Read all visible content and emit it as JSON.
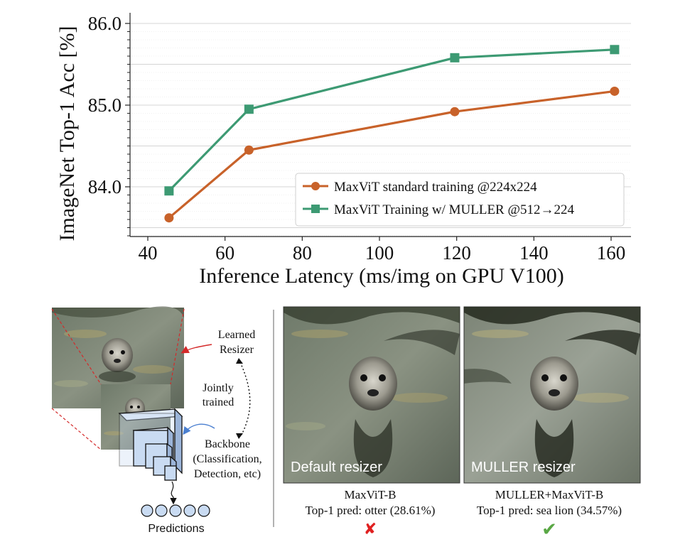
{
  "chart_data": {
    "type": "line",
    "xlabel": "Inference Latency (ms/img on GPU V100)",
    "ylabel": "ImageNet Top-1 Acc [%]",
    "xlim": [
      35,
      165
    ],
    "ylim": [
      83.4,
      86.0
    ],
    "xticks": [
      40,
      60,
      80,
      100,
      120,
      140,
      160
    ],
    "yticks": [
      84.0,
      85.0,
      86.0
    ],
    "ytick_labels": [
      "84.0",
      "85.0",
      "86.0"
    ],
    "grid": "horizontal",
    "legend_position": "lower-right",
    "series": [
      {
        "name": "MaxViT standard training @224x224",
        "color": "#c8622a",
        "marker": "circle",
        "x": [
          45.5,
          66.2,
          119.5,
          160.9
        ],
        "y": [
          83.62,
          84.45,
          84.92,
          85.17
        ]
      },
      {
        "name": "MaxViT Training w/ MULLER @512→224",
        "color": "#3d9a73",
        "marker": "square",
        "x": [
          45.5,
          66.2,
          119.5,
          160.9
        ],
        "y": [
          83.95,
          84.95,
          85.58,
          85.68
        ]
      }
    ]
  },
  "diagram": {
    "learned_resizer_label_1": "Learned",
    "learned_resizer_label_2": "Resizer",
    "jointly_label_1": "Jointly",
    "jointly_label_2": "trained",
    "backbone_label_1": "Backbone",
    "backbone_label_2": "(Classification,",
    "backbone_label_3": "Detection, etc)",
    "predictions_label": "Predictions"
  },
  "examples": [
    {
      "overlay": "Default resizer",
      "model": "MaxViT-B",
      "prediction": "Top-1 pred: otter (28.61%)",
      "verdict_mark": "✘",
      "verdict_color": "#e02020"
    },
    {
      "overlay": "MULLER resizer",
      "model": "MULLER+MaxViT-B",
      "prediction": "Top-1 pred: sea lion (34.57%)",
      "verdict_mark": "✔",
      "verdict_color": "#5aa845"
    }
  ]
}
